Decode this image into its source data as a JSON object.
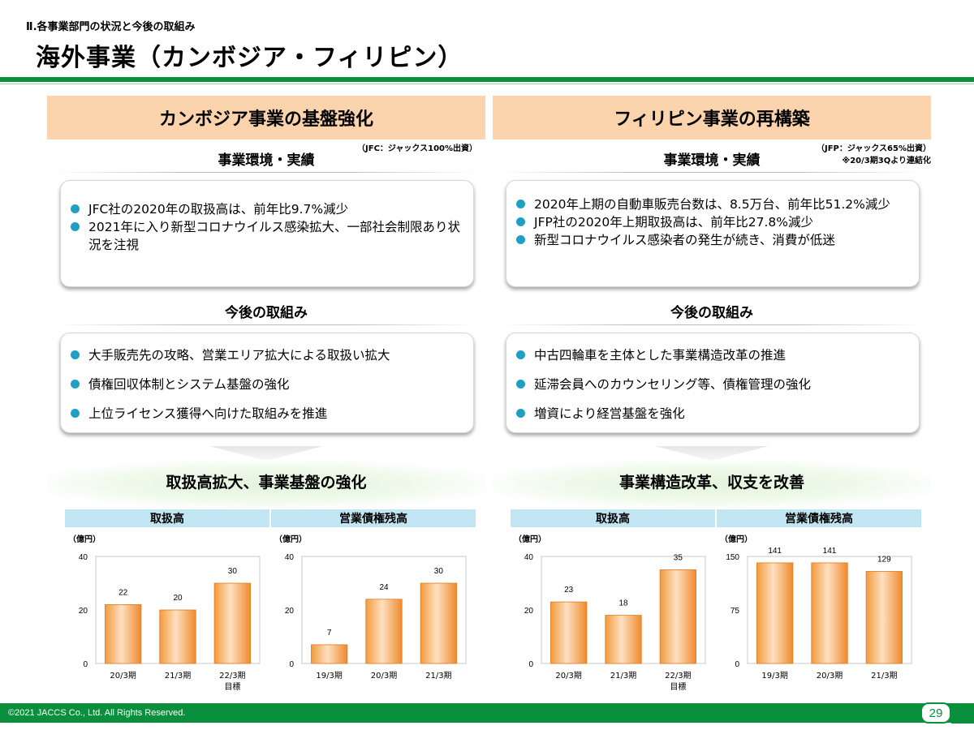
{
  "header": {
    "breadcrumb": "Ⅱ.各事業部門の状況と今後の取組み",
    "title": "海外事業（カンボジア・フィリピン）"
  },
  "cambodia": {
    "heading": "カンボジア事業の基盤強化",
    "note": "（JFC：ジャックス100%出資）",
    "env_title": "事業環境・実績",
    "env_items": [
      "JFC社の2020年の取扱高は、前年比9.7%減少",
      "2021年に入り新型コロナウイルス感染拡大、一部社会制限あり状況を注視"
    ],
    "future_title": "今後の取組み",
    "future_items": [
      "大手販売先の攻略、営業エリア拡大による取扱い拡大",
      "債権回収体制とシステム基盤の強化",
      "上位ライセンス獲得へ向けた取組みを推進"
    ],
    "result": "取扱高拡大、事業基盤の強化"
  },
  "philippines": {
    "heading": "フィリピン事業の再構築",
    "note_line1": "（JFP：ジャックス65%出資）",
    "note_line2": "※20/3期3Qより連結化",
    "env_title": "事業環境・実績",
    "env_items": [
      "2020年上期の自動車販売台数は、8.5万台、前年比51.2%減少",
      "JFP社の2020年上期取扱高は、前年比27.8%減少",
      "新型コロナウイルス感染者の発生が続き、消費が低迷"
    ],
    "future_title": "今後の取組み",
    "future_items": [
      "中古四輪車を主体とした事業構造改革の推進",
      "延滞会員へのカウンセリング等、債権管理の強化",
      "増資により経営基盤を強化"
    ],
    "result": "事業構造改革、収支を改善"
  },
  "chart_data": [
    {
      "id": "jfc-volume",
      "type": "bar",
      "title": "取扱高",
      "unit": "（億円）",
      "categories": [
        "20/3期",
        "21/3期",
        "22/3期"
      ],
      "sublabels": [
        "",
        "",
        "目標"
      ],
      "values": [
        22,
        20,
        30
      ],
      "ylim": [
        0,
        40
      ],
      "yticks": [
        0,
        20,
        40
      ]
    },
    {
      "id": "jfc-balance",
      "type": "bar",
      "title": "営業債権残高",
      "unit": "（億円）",
      "categories": [
        "19/3期",
        "20/3期",
        "21/3期"
      ],
      "sublabels": [
        "",
        "",
        ""
      ],
      "values": [
        7,
        24,
        30
      ],
      "ylim": [
        0,
        40
      ],
      "yticks": [
        0,
        20,
        40
      ]
    },
    {
      "id": "jfp-volume",
      "type": "bar",
      "title": "取扱高",
      "unit": "（億円）",
      "categories": [
        "20/3期",
        "21/3期",
        "22/3期"
      ],
      "sublabels": [
        "",
        "",
        "目標"
      ],
      "values": [
        23,
        18,
        35
      ],
      "ylim": [
        0,
        40
      ],
      "yticks": [
        0,
        20,
        40
      ]
    },
    {
      "id": "jfp-balance",
      "type": "bar",
      "title": "営業債権残高",
      "unit": "（億円）",
      "categories": [
        "19/3期",
        "20/3期",
        "21/3期"
      ],
      "sublabels": [
        "",
        "",
        ""
      ],
      "values": [
        141,
        141,
        129
      ],
      "ylim": [
        0,
        150
      ],
      "yticks": [
        0,
        75,
        150
      ]
    }
  ],
  "footer": {
    "copyright": "©2021 JACCS Co., Ltd. All Rights Reserved.",
    "page": "29"
  }
}
